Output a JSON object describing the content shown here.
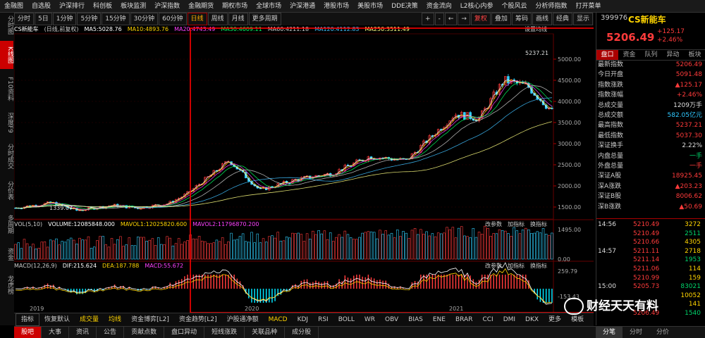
{
  "topmenu": [
    "金融图",
    "自选股",
    "沪深排行",
    "科创板",
    "板块监测",
    "沪深指数",
    "金融期货",
    "期权市场",
    "全球市场",
    "沪深港通",
    "港股市场",
    "美股市场",
    "DDE决策",
    "资金流向",
    "L2核心内参",
    "个股风云",
    "分析师指数",
    "打开菜单"
  ],
  "toolbar": {
    "left": [
      "分时",
      "5日",
      "1分钟",
      "5分钟",
      "15分钟",
      "30分钟",
      "60分钟",
      "日线",
      "周线",
      "月线",
      "更多周期"
    ],
    "active": "日线",
    "right": [
      "复权",
      "叠加",
      "筹码",
      "画线",
      "经典",
      "显示"
    ]
  },
  "lefttabs": [
    "分时图",
    "K线图",
    "F10资料",
    "深度F9",
    "分时成交",
    "分价表",
    "多周期",
    "资金",
    "龙虎榜"
  ],
  "price_header": {
    "name": "CS新能车",
    "mode": "(日线,前复权)",
    "ma": [
      {
        "label": "MA5:5028.76",
        "color": "#ffffff"
      },
      {
        "label": "MA10:4893.76",
        "color": "#ffd400"
      },
      {
        "label": "MA20:4743.49",
        "color": "#ff40ff"
      },
      {
        "label": "MA30:4609.11",
        "color": "#00ff60"
      },
      {
        "label": "MA60:4211.18",
        "color": "#cccccc"
      },
      {
        "label": "MA120:4112.83",
        "color": "#40c0ff"
      },
      {
        "label": "MA250:3511.49",
        "color": "#ffff80"
      }
    ],
    "setting": "设置均线",
    "max_label": "5237.21",
    "min_label": "1339.07",
    "yticks": [
      "5000.00",
      "4500.00",
      "4000.00",
      "3500.00",
      "3000.00",
      "2500.00",
      "2000.00",
      "1500.00"
    ]
  },
  "vol_header": {
    "items": [
      {
        "label": "VOL(5,10)",
        "color": "#cccccc"
      },
      {
        "label": "VOLUME:12085848.000",
        "color": "#ffffff"
      },
      {
        "label": "MAVOL1:12025820.600",
        "color": "#ffd400"
      },
      {
        "label": "MAVOL2:11796870.200",
        "color": "#ff40ff"
      }
    ],
    "buttons": [
      "改参数",
      "加指标",
      "换指标"
    ],
    "yticks": [
      "1495.00",
      "0.00"
    ]
  },
  "macd_header": {
    "items": [
      {
        "label": "MACD(12,26,9)",
        "color": "#cccccc"
      },
      {
        "label": "DIF:215.624",
        "color": "#ffffff"
      },
      {
        "label": "DEA:187.788",
        "color": "#ffd400"
      },
      {
        "label": "MACD:55.672",
        "color": "#ff40ff"
      }
    ],
    "buttons": [
      "改参数",
      "加指标",
      "换指标"
    ],
    "yticks": [
      "259.79",
      "-153.43"
    ]
  },
  "xaxis": [
    "2019",
    "2020",
    "2021"
  ],
  "indtabs": [
    "指标",
    "恢复默认",
    "成交量",
    "均线",
    "资金博弈[L2]",
    "资金趋势[L2]",
    "沪股通净额",
    "MACD",
    "KDJ",
    "RSI",
    "BOLL",
    "WR",
    "OBV",
    "BIAS",
    "ENE",
    "BRAR",
    "CCI",
    "DMI",
    "DKX",
    "更多",
    "模板"
  ],
  "bottomtabs": [
    "股吧",
    "大事",
    "资讯",
    "公告",
    "贡献点数",
    "盘口异动",
    "短线涨跌",
    "关联品种",
    "成分股"
  ],
  "quote": {
    "code": "399976",
    "name": "CS新能车",
    "price": "5206.49",
    "change": "+125.17",
    "pct": "+2.46%",
    "tabs": [
      "盘口",
      "资金",
      "队列",
      "异动",
      "板块"
    ],
    "rows": [
      {
        "k": "最新指数",
        "v": "5206.49",
        "c": "red"
      },
      {
        "k": "今日开盘",
        "v": "5091.48",
        "c": "red"
      },
      {
        "k": "指数涨跌",
        "v": "▲125.17",
        "c": "red"
      },
      {
        "k": "指数涨幅",
        "v": "+2.46%",
        "c": "red"
      },
      {
        "k": "总成交量",
        "v": "1209万手",
        "c": "white"
      },
      {
        "k": "总成交额",
        "v": "582.05亿元",
        "c": "cyan"
      },
      {
        "k": "最高指数",
        "v": "5237.21",
        "c": "red"
      },
      {
        "k": "最低指数",
        "v": "5037.30",
        "c": "red"
      },
      {
        "k": "深证换手",
        "v": "2.22%",
        "c": "white"
      },
      {
        "k": "内盘总量",
        "v": "一手",
        "c": "green"
      },
      {
        "k": "外盘总量",
        "v": "一手",
        "c": "red"
      },
      {
        "k": "深证A股",
        "v": "18925.45",
        "c": "red"
      },
      {
        "k": "深A涨跌",
        "v": "▲203.23",
        "c": "red"
      },
      {
        "k": "深证B股",
        "v": "8006.62",
        "c": "red"
      },
      {
        "k": "深B涨跌",
        "v": "▲50.69",
        "c": "red"
      }
    ],
    "ticks": [
      {
        "t": "14:56",
        "p": "5210.49",
        "v": "3272"
      },
      {
        "t": "",
        "p": "5210.49",
        "v": "2511"
      },
      {
        "t": "",
        "p": "5210.66",
        "v": "4305"
      },
      {
        "t": "14:57",
        "p": "5211.11",
        "v": "2718"
      },
      {
        "t": "",
        "p": "5211.14",
        "v": "1953"
      },
      {
        "t": "",
        "p": "5211.06",
        "v": "114"
      },
      {
        "t": "",
        "p": "5210.99",
        "v": "159"
      },
      {
        "t": "15:00",
        "p": "5205.73",
        "v": "83021"
      },
      {
        "t": "",
        "p": "",
        "v": "10052"
      },
      {
        "t": "",
        "p": "",
        "v": "141"
      },
      {
        "t": "",
        "p": "5206.49",
        "v": "1540"
      }
    ],
    "bottom_tabs": [
      "分笔",
      "分时",
      "分价"
    ]
  },
  "watermark": "财经天天有料"
}
